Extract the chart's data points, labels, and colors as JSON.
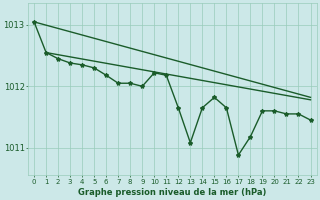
{
  "title": "Graphe pression niveau de la mer (hPa)",
  "bg_color": "#cce8e8",
  "grid_color": "#99ccbb",
  "line_color": "#1a5c2a",
  "xlim": [
    -0.5,
    23.5
  ],
  "ylim": [
    1010.55,
    1013.35
  ],
  "yticks": [
    1011,
    1012,
    1013
  ],
  "xticks": [
    0,
    1,
    2,
    3,
    4,
    5,
    6,
    7,
    8,
    9,
    10,
    11,
    12,
    13,
    14,
    15,
    16,
    17,
    18,
    19,
    20,
    21,
    22,
    23
  ],
  "trend1_x": [
    0,
    23
  ],
  "trend1_y": [
    1013.05,
    1011.82
  ],
  "trend2_x": [
    1,
    23
  ],
  "trend2_y": [
    1012.55,
    1011.78
  ],
  "main_x": [
    0,
    1,
    2,
    3,
    4,
    5,
    6,
    7,
    8,
    9,
    10,
    11,
    12,
    13,
    14,
    15,
    16,
    17,
    18,
    19,
    20,
    21,
    22,
    23
  ],
  "main_y": [
    1013.05,
    1012.55,
    1012.45,
    1012.38,
    1012.35,
    1012.3,
    1012.18,
    1012.05,
    1012.05,
    1012.0,
    1012.22,
    1012.18,
    1011.65,
    1011.08,
    1011.65,
    1011.82,
    1011.65,
    1010.88,
    1011.18,
    1011.6,
    1011.6,
    1011.55,
    1011.55,
    1011.45
  ],
  "title_fontsize": 6,
  "tick_fontsize": 5,
  "linewidth": 1.0,
  "markersize": 3.0
}
